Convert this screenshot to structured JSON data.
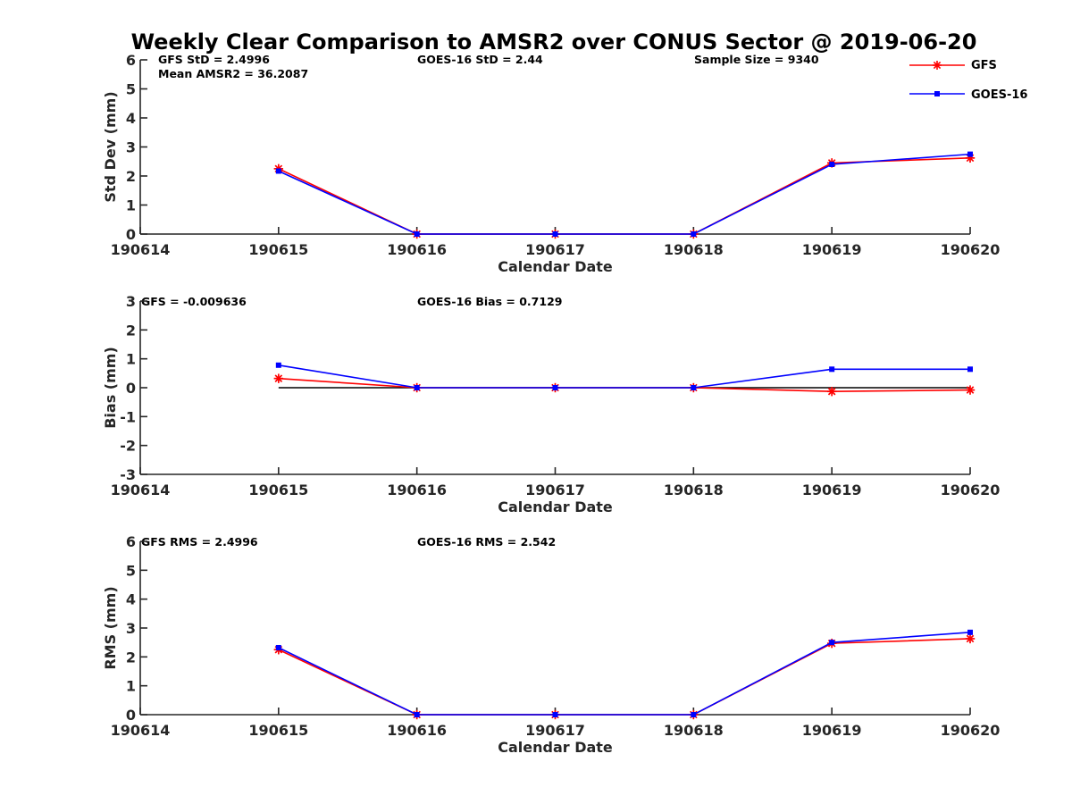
{
  "title": "Weekly Clear Comparison to AMSR2 over CONUS Sector @ 2019-06-20",
  "colors": {
    "gfs": "#ff0000",
    "goes": "#0000ff",
    "zero_line": "#000000",
    "axis": "#262626"
  },
  "legend": {
    "placement": "top-right",
    "items": [
      {
        "label": "GFS",
        "color": "#ff0000",
        "marker": "asterisk"
      },
      {
        "label": "GOES-16",
        "color": "#0000ff",
        "marker": "square"
      }
    ]
  },
  "chart_data": [
    {
      "type": "line",
      "title": "",
      "xlabel": "Calendar Date",
      "ylabel": "Std Dev (mm)",
      "x_ticks": [
        "190614",
        "190615",
        "190616",
        "190617",
        "190618",
        "190619",
        "190620"
      ],
      "y_ticks": [
        "0",
        "1",
        "2",
        "3",
        "4",
        "5",
        "6"
      ],
      "ylim": [
        0,
        6
      ],
      "annotations": {
        "gfs": "GFS StD = 2.4996",
        "amsr2": "Mean AMSR2 = 36.2087",
        "goes": "GOES-16 StD = 2.44",
        "sample": "Sample Size = 9340"
      },
      "x": [
        "190615",
        "190616",
        "190617",
        "190618",
        "190619",
        "190620"
      ],
      "series": [
        {
          "name": "GFS",
          "color": "#ff0000",
          "marker": "asterisk",
          "values": [
            2.25,
            0,
            0,
            0,
            2.45,
            2.62
          ]
        },
        {
          "name": "GOES-16",
          "color": "#0000ff",
          "marker": "square",
          "values": [
            2.17,
            0,
            0,
            0,
            2.4,
            2.75
          ]
        }
      ]
    },
    {
      "type": "line",
      "title": "",
      "xlabel": "Calendar Date",
      "ylabel": "Bias (mm)",
      "x_ticks": [
        "190614",
        "190615",
        "190616",
        "190617",
        "190618",
        "190619",
        "190620"
      ],
      "y_ticks": [
        "-3",
        "-2",
        "-1",
        "0",
        "1",
        "2",
        "3"
      ],
      "ylim": [
        -3,
        3
      ],
      "annotations": {
        "gfs": "GFS = -0.009636",
        "goes": "GOES-16 Bias  = 0.7129"
      },
      "x": [
        "190615",
        "190616",
        "190617",
        "190618",
        "190619",
        "190620"
      ],
      "zero_line": true,
      "series": [
        {
          "name": "GFS",
          "color": "#ff0000",
          "marker": "asterisk",
          "values": [
            0.32,
            0,
            0,
            0,
            -0.13,
            -0.08
          ]
        },
        {
          "name": "GOES-16",
          "color": "#0000ff",
          "marker": "square",
          "values": [
            0.78,
            0,
            0,
            0,
            0.64,
            0.64
          ]
        }
      ]
    },
    {
      "type": "line",
      "title": "",
      "xlabel": "Calendar Date",
      "ylabel": "RMS (mm)",
      "x_ticks": [
        "190614",
        "190615",
        "190616",
        "190617",
        "190618",
        "190619",
        "190620"
      ],
      "y_ticks": [
        "0",
        "1",
        "2",
        "3",
        "4",
        "5",
        "6"
      ],
      "ylim": [
        0,
        6
      ],
      "annotations": {
        "gfs": "GFS RMS = 2.4996",
        "goes": "GOES-16 RMS = 2.542"
      },
      "x": [
        "190615",
        "190616",
        "190617",
        "190618",
        "190619",
        "190620"
      ],
      "series": [
        {
          "name": "GFS",
          "color": "#ff0000",
          "marker": "asterisk",
          "values": [
            2.25,
            0,
            0,
            0,
            2.47,
            2.63
          ]
        },
        {
          "name": "GOES-16",
          "color": "#0000ff",
          "marker": "square",
          "values": [
            2.32,
            0,
            0,
            0,
            2.5,
            2.85
          ]
        }
      ]
    }
  ]
}
